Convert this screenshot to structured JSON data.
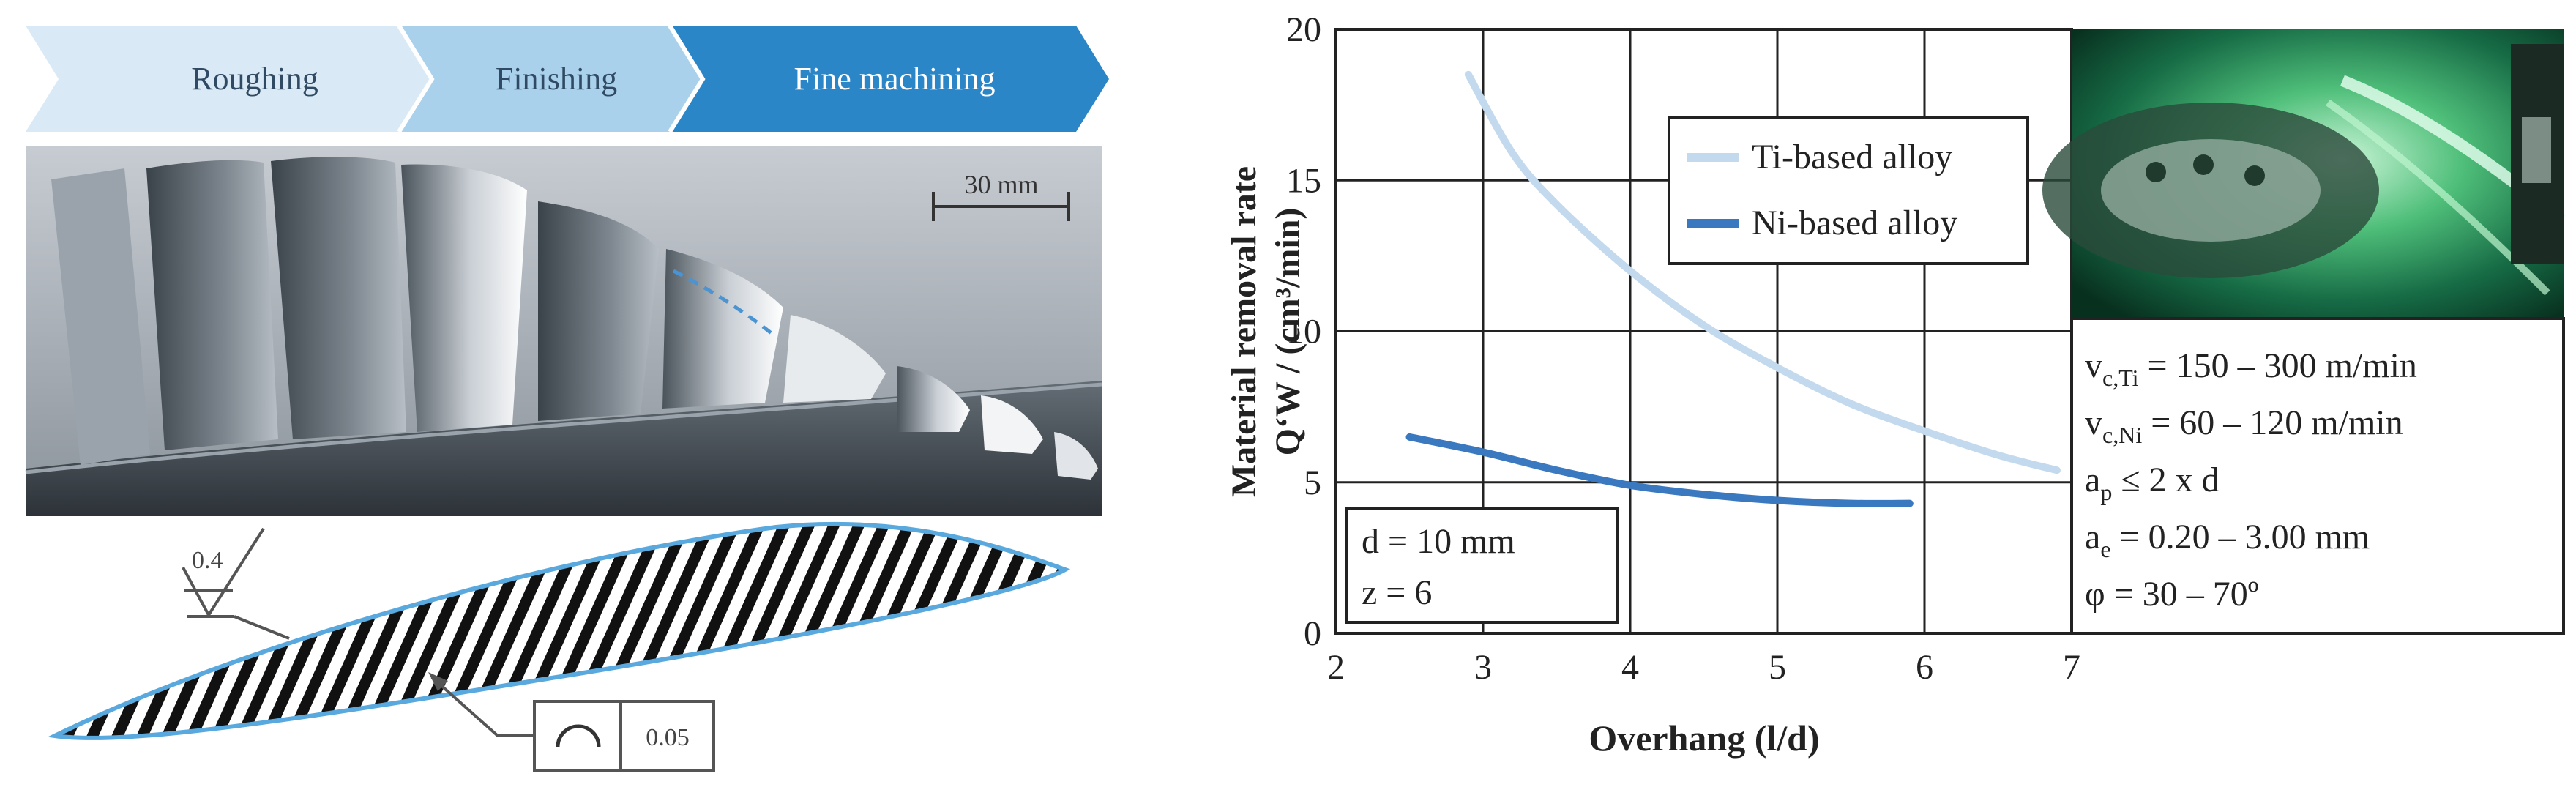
{
  "process": {
    "steps": [
      {
        "label": "Roughing"
      },
      {
        "label": "Finishing"
      },
      {
        "label": "Fine machining"
      }
    ],
    "colors": [
      "#d8e9f6",
      "#a9d0ec",
      "#2a86c8"
    ]
  },
  "illustration": {
    "scale_bar_label": "30 mm",
    "surface_roughness_label": "0.4",
    "profile_tolerance_label": "0.05",
    "profile_symbol_icon": "profile-of-line-icon",
    "tool_photo_icon": "milling-photo-icon"
  },
  "chart_data": {
    "type": "line",
    "title": "",
    "xlabel": "Overhang (l/d)",
    "ylabel_line1": "Material removal rate",
    "ylabel_line2": "Q‘W / (cm³/min)",
    "xlim": [
      2,
      7
    ],
    "ylim": [
      0,
      20
    ],
    "xticks": [
      2,
      3,
      4,
      5,
      6,
      7
    ],
    "yticks": [
      0,
      5,
      10,
      15,
      20
    ],
    "grid": true,
    "legend_position": "top-right",
    "series": [
      {
        "name": "Ti-based alloy",
        "color": "#c3d9ee",
        "x": [
          2.9,
          3.2,
          3.5,
          4.0,
          4.5,
          5.0,
          5.5,
          6.0,
          6.5,
          6.9
        ],
        "y": [
          18.5,
          15.9,
          14.2,
          12.0,
          10.2,
          8.8,
          7.6,
          6.7,
          5.9,
          5.4
        ]
      },
      {
        "name": "Ni-based alloy",
        "color": "#3a78bf",
        "x": [
          2.5,
          3.0,
          3.5,
          4.0,
          4.5,
          5.0,
          5.5,
          5.9
        ],
        "y": [
          6.5,
          6.0,
          5.4,
          4.9,
          4.6,
          4.4,
          4.3,
          4.3
        ]
      }
    ],
    "annotation_box": [
      "d = 10 mm",
      "z = 6"
    ],
    "parameters": [
      {
        "base": "v",
        "sub": "c,Ti",
        "rest": " = 150 – 300 m/min"
      },
      {
        "base": "v",
        "sub": "c,Ni",
        "rest": " = 60 – 120 m/min"
      },
      {
        "base": "a",
        "sub": "p",
        "rest": " ≤ 2 x d"
      },
      {
        "base": "a",
        "sub": "e",
        "rest": " = 0.20 – 3.00 mm"
      },
      {
        "base": "φ = 30 – 70º",
        "sub": "",
        "rest": ""
      }
    ]
  }
}
